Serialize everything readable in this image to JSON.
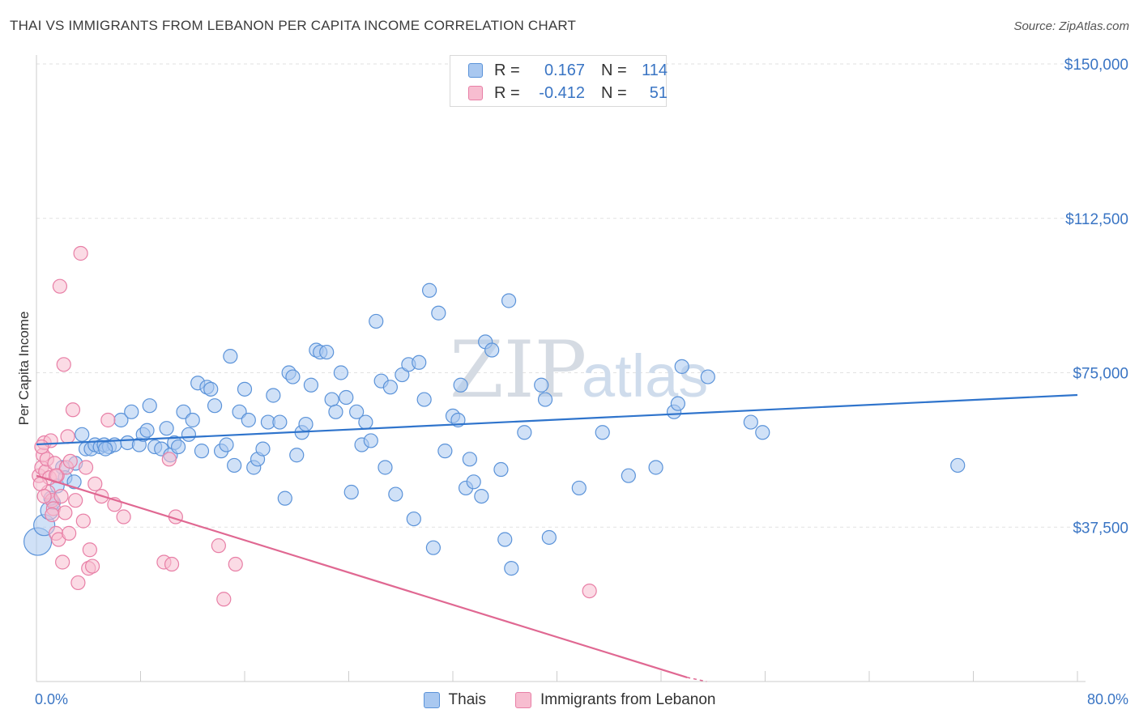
{
  "header": {
    "title": "THAI VS IMMIGRANTS FROM LEBANON PER CAPITA INCOME CORRELATION CHART",
    "source": "Source: ZipAtlas.com"
  },
  "stats": {
    "rows": [
      {
        "r_label": "R =",
        "r_value": "0.167",
        "n_label": "N =",
        "n_value": "114",
        "color": "#a9c8f0"
      },
      {
        "r_label": "R =",
        "r_value": "-0.412",
        "n_label": "N =",
        "n_value": "51",
        "color": "#f7bdd0"
      }
    ]
  },
  "legend": {
    "items": [
      {
        "label": "Thais",
        "color": "#a9c8f0"
      },
      {
        "label": "Immigrants from Lebanon",
        "color": "#f7bdd0"
      }
    ]
  },
  "watermark": {
    "zip": "ZIP",
    "atlas": "atlas"
  },
  "chart_data": {
    "type": "scatter",
    "title": "THAI VS IMMIGRANTS FROM LEBANON PER CAPITA INCOME CORRELATION CHART",
    "ylabel": "Per Capita Income",
    "xlabel": "",
    "xlim": [
      0,
      80
    ],
    "ylim": [
      0,
      155000
    ],
    "x_tick_labels": {
      "left": "0.0%",
      "right": "80.0%"
    },
    "y_ticks": [
      {
        "value": 150000,
        "label": "$150,000"
      },
      {
        "value": 112500,
        "label": "$112,500"
      },
      {
        "value": 75000,
        "label": "$75,000"
      },
      {
        "value": 37500,
        "label": "$37,500"
      }
    ],
    "grid": true,
    "series": [
      {
        "name": "Thais",
        "color": "#5b93d9",
        "fill": "#a9c8f0",
        "trend": {
          "x": [
            0,
            80
          ],
          "y": [
            57600,
            69600
          ]
        },
        "points": [
          [
            0.1,
            34000
          ],
          [
            0.6,
            38000
          ],
          [
            1.0,
            41500
          ],
          [
            1.3,
            43500
          ],
          [
            1.6,
            47500
          ],
          [
            2.0,
            52000
          ],
          [
            2.2,
            49500
          ],
          [
            2.9,
            48500
          ],
          [
            3.5,
            60000
          ],
          [
            3.8,
            56500
          ],
          [
            4.2,
            56500
          ],
          [
            4.5,
            57500
          ],
          [
            4.9,
            57000
          ],
          [
            5.2,
            57500
          ],
          [
            5.6,
            57000
          ],
          [
            6.0,
            57500
          ],
          [
            6.5,
            63500
          ],
          [
            7.0,
            58000
          ],
          [
            7.3,
            65500
          ],
          [
            7.9,
            57500
          ],
          [
            8.2,
            60000
          ],
          [
            8.5,
            61000
          ],
          [
            8.7,
            67000
          ],
          [
            9.1,
            57000
          ],
          [
            9.6,
            56500
          ],
          [
            10.0,
            61500
          ],
          [
            10.3,
            55000
          ],
          [
            10.6,
            58000
          ],
          [
            10.9,
            57000
          ],
          [
            11.3,
            65500
          ],
          [
            11.7,
            60000
          ],
          [
            12.0,
            63500
          ],
          [
            12.4,
            72500
          ],
          [
            12.7,
            56000
          ],
          [
            13.1,
            71500
          ],
          [
            13.4,
            71000
          ],
          [
            13.7,
            67000
          ],
          [
            14.2,
            56000
          ],
          [
            14.6,
            57500
          ],
          [
            14.9,
            79000
          ],
          [
            15.2,
            52500
          ],
          [
            15.6,
            65500
          ],
          [
            16.0,
            71000
          ],
          [
            16.3,
            63500
          ],
          [
            16.7,
            52000
          ],
          [
            17.0,
            54000
          ],
          [
            17.4,
            56500
          ],
          [
            17.8,
            63000
          ],
          [
            18.2,
            69500
          ],
          [
            18.7,
            63000
          ],
          [
            19.1,
            44500
          ],
          [
            19.4,
            75000
          ],
          [
            19.7,
            74000
          ],
          [
            20.0,
            55000
          ],
          [
            20.4,
            60500
          ],
          [
            20.7,
            62500
          ],
          [
            21.1,
            72000
          ],
          [
            21.5,
            80500
          ],
          [
            21.8,
            80000
          ],
          [
            22.3,
            80000
          ],
          [
            22.7,
            68500
          ],
          [
            23.0,
            65500
          ],
          [
            23.4,
            75000
          ],
          [
            23.8,
            69000
          ],
          [
            24.2,
            46000
          ],
          [
            24.6,
            65500
          ],
          [
            25.0,
            57500
          ],
          [
            25.3,
            63000
          ],
          [
            25.7,
            58500
          ],
          [
            26.1,
            87500
          ],
          [
            26.5,
            73000
          ],
          [
            26.8,
            52000
          ],
          [
            27.2,
            71500
          ],
          [
            27.6,
            45500
          ],
          [
            28.1,
            74500
          ],
          [
            28.6,
            77000
          ],
          [
            29.0,
            39500
          ],
          [
            29.4,
            77500
          ],
          [
            29.8,
            68500
          ],
          [
            30.2,
            95000
          ],
          [
            30.5,
            32500
          ],
          [
            30.9,
            89500
          ],
          [
            31.4,
            56000
          ],
          [
            32.0,
            64500
          ],
          [
            32.4,
            63500
          ],
          [
            32.6,
            72000
          ],
          [
            33.0,
            47000
          ],
          [
            33.3,
            54000
          ],
          [
            33.6,
            48500
          ],
          [
            34.2,
            45000
          ],
          [
            34.5,
            82500
          ],
          [
            35.0,
            80500
          ],
          [
            35.7,
            51500
          ],
          [
            36.0,
            34500
          ],
          [
            36.3,
            92500
          ],
          [
            36.5,
            27500
          ],
          [
            37.5,
            60500
          ],
          [
            38.8,
            72000
          ],
          [
            39.1,
            68500
          ],
          [
            39.4,
            35000
          ],
          [
            41.7,
            47000
          ],
          [
            43.5,
            60500
          ],
          [
            45.5,
            50000
          ],
          [
            47.6,
            52000
          ],
          [
            49.0,
            65500
          ],
          [
            49.3,
            67500
          ],
          [
            49.6,
            76500
          ],
          [
            51.6,
            74000
          ],
          [
            54.9,
            63000
          ],
          [
            55.8,
            60500
          ],
          [
            70.8,
            52500
          ],
          [
            1.1,
            44500
          ],
          [
            3.0,
            53000
          ],
          [
            5.3,
            56500
          ]
        ]
      },
      {
        "name": "Immigrants from Lebanon",
        "color": "#e87fa6",
        "fill": "#f7bdd0",
        "trend": {
          "x": [
            0,
            50
          ],
          "y": [
            50000,
            1000
          ]
        },
        "points": [
          [
            0.2,
            50000
          ],
          [
            0.4,
            52000
          ],
          [
            0.5,
            55000
          ],
          [
            0.6,
            58000
          ],
          [
            0.7,
            51000
          ],
          [
            0.8,
            54000
          ],
          [
            0.9,
            46000
          ],
          [
            1.0,
            49500
          ],
          [
            1.1,
            58500
          ],
          [
            1.2,
            44000
          ],
          [
            1.3,
            42000
          ],
          [
            1.4,
            53000
          ],
          [
            1.5,
            36000
          ],
          [
            1.6,
            50000
          ],
          [
            1.7,
            34500
          ],
          [
            1.8,
            96000
          ],
          [
            1.9,
            45000
          ],
          [
            2.0,
            29000
          ],
          [
            2.1,
            77000
          ],
          [
            2.2,
            41000
          ],
          [
            2.3,
            52000
          ],
          [
            2.4,
            59500
          ],
          [
            2.5,
            36000
          ],
          [
            2.6,
            53500
          ],
          [
            2.8,
            66000
          ],
          [
            3.0,
            44000
          ],
          [
            3.2,
            24000
          ],
          [
            3.4,
            104000
          ],
          [
            3.6,
            39000
          ],
          [
            3.8,
            52000
          ],
          [
            4.0,
            27500
          ],
          [
            4.1,
            32000
          ],
          [
            4.3,
            28000
          ],
          [
            4.5,
            48000
          ],
          [
            5.0,
            45000
          ],
          [
            5.5,
            63500
          ],
          [
            6.0,
            43000
          ],
          [
            6.7,
            40000
          ],
          [
            9.8,
            29000
          ],
          [
            10.2,
            54000
          ],
          [
            10.4,
            28500
          ],
          [
            10.7,
            40000
          ],
          [
            14.0,
            33000
          ],
          [
            14.4,
            20000
          ],
          [
            15.3,
            28500
          ],
          [
            42.5,
            22000
          ],
          [
            0.3,
            48000
          ],
          [
            0.4,
            57000
          ],
          [
            0.6,
            45000
          ],
          [
            1.2,
            40500
          ],
          [
            1.5,
            50000
          ]
        ]
      }
    ]
  }
}
